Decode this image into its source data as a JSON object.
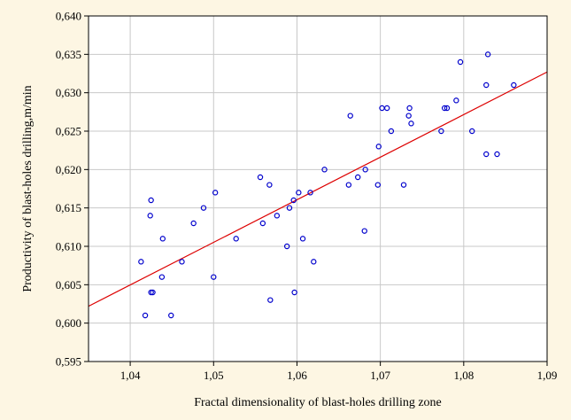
{
  "chart_data": {
    "type": "scatter",
    "title": "",
    "xlabel": "Fractal dimensionality of blast-holes drilling zone",
    "ylabel": "Productivity of blast-holes drilling,m/min",
    "xlim": [
      1.035,
      1.09
    ],
    "ylim": [
      0.595,
      0.64
    ],
    "x_ticks": [
      1.04,
      1.05,
      1.06,
      1.07,
      1.08,
      1.09
    ],
    "x_tick_labels": [
      "1,04",
      "1,05",
      "1,06",
      "1,07",
      "1,08",
      "1,09"
    ],
    "y_ticks": [
      0.595,
      0.6,
      0.605,
      0.61,
      0.615,
      0.62,
      0.625,
      0.63,
      0.635,
      0.64
    ],
    "y_tick_labels": [
      "0,595",
      "0,600",
      "0,605",
      "0,610",
      "0,615",
      "0,620",
      "0,625",
      "0,630",
      "0,635",
      "0,640"
    ],
    "grid": true,
    "colors": {
      "points": "#0000cc",
      "fit_line": "#dd0000",
      "plot_bg": "#ffffff",
      "grid": "#c8c8c8",
      "page_bg": "#fdf6e3"
    },
    "series": [
      {
        "marker": "circle",
        "points": [
          [
            1.0413,
            0.608
          ],
          [
            1.0418,
            0.601
          ],
          [
            1.0424,
            0.614
          ],
          [
            1.0425,
            0.616
          ],
          [
            1.0425,
            0.604
          ],
          [
            1.0427,
            0.604
          ],
          [
            1.0438,
            0.606
          ],
          [
            1.0439,
            0.611
          ],
          [
            1.0449,
            0.601
          ],
          [
            1.0462,
            0.608
          ],
          [
            1.0476,
            0.613
          ],
          [
            1.0488,
            0.615
          ],
          [
            1.05,
            0.606
          ],
          [
            1.0502,
            0.617
          ],
          [
            1.0527,
            0.611
          ],
          [
            1.0556,
            0.619
          ],
          [
            1.0559,
            0.613
          ],
          [
            1.0567,
            0.618
          ],
          [
            1.0568,
            0.603
          ],
          [
            1.0576,
            0.614
          ],
          [
            1.0588,
            0.61
          ],
          [
            1.0591,
            0.615
          ],
          [
            1.0596,
            0.616
          ],
          [
            1.0597,
            0.604
          ],
          [
            1.0602,
            0.617
          ],
          [
            1.0607,
            0.611
          ],
          [
            1.0616,
            0.617
          ],
          [
            1.062,
            0.608
          ],
          [
            1.0633,
            0.62
          ],
          [
            1.0662,
            0.618
          ],
          [
            1.0664,
            0.627
          ],
          [
            1.0673,
            0.619
          ],
          [
            1.0681,
            0.612
          ],
          [
            1.0682,
            0.62
          ],
          [
            1.0697,
            0.618
          ],
          [
            1.0698,
            0.623
          ],
          [
            1.0702,
            0.628
          ],
          [
            1.0708,
            0.628
          ],
          [
            1.0713,
            0.625
          ],
          [
            1.0728,
            0.618
          ],
          [
            1.0734,
            0.627
          ],
          [
            1.0735,
            0.628
          ],
          [
            1.0737,
            0.626
          ],
          [
            1.0773,
            0.625
          ],
          [
            1.0777,
            0.628
          ],
          [
            1.078,
            0.628
          ],
          [
            1.0791,
            0.629
          ],
          [
            1.0796,
            0.634
          ],
          [
            1.081,
            0.625
          ],
          [
            1.0827,
            0.631
          ],
          [
            1.0827,
            0.622
          ],
          [
            1.0829,
            0.635
          ],
          [
            1.084,
            0.622
          ],
          [
            1.086,
            0.631
          ]
        ]
      }
    ],
    "fit_line": {
      "x": [
        1.035,
        1.09
      ],
      "y": [
        0.6022,
        0.6327
      ]
    }
  }
}
